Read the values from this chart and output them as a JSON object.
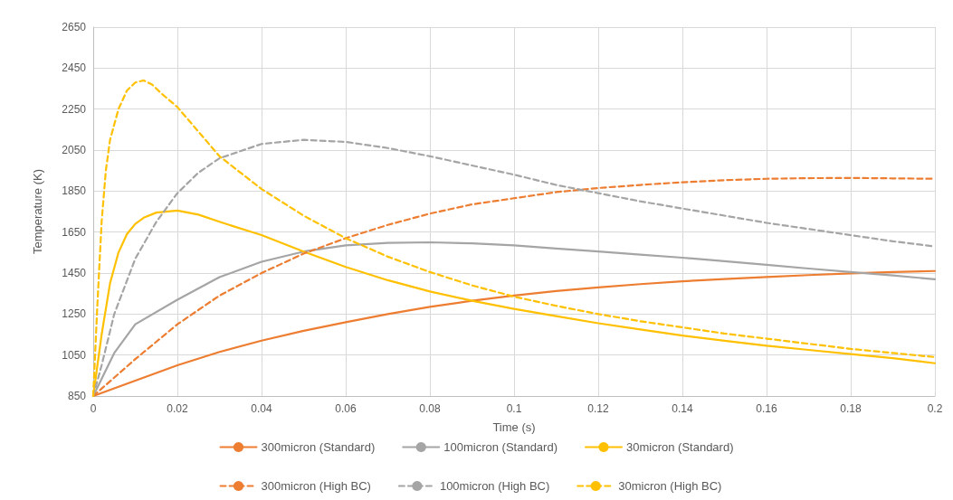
{
  "chart_data": {
    "type": "line",
    "xlabel": "Time (s)",
    "ylabel": "Temperature (K)",
    "xlim": [
      0,
      0.2
    ],
    "xticks": [
      0,
      0.02,
      0.04,
      0.06,
      0.08,
      0.1,
      0.12,
      0.14,
      0.16,
      0.18,
      0.2
    ],
    "ylim": [
      850,
      2650
    ],
    "yticks": [
      850,
      1050,
      1250,
      1450,
      1650,
      1850,
      2050,
      2250,
      2450,
      2650
    ],
    "grid": true,
    "legend": "bottom",
    "marker": "none",
    "series": [
      {
        "name": "300micron (Standard)",
        "color": "#ed7d31",
        "line_style": "solid",
        "x": [
          0,
          0.01,
          0.02,
          0.03,
          0.04,
          0.05,
          0.06,
          0.07,
          0.08,
          0.09,
          0.1,
          0.11,
          0.12,
          0.13,
          0.14,
          0.15,
          0.16,
          0.17,
          0.18,
          0.19,
          0.2
        ],
        "values": [
          850,
          925,
          1000,
          1065,
          1120,
          1168,
          1210,
          1250,
          1285,
          1315,
          1340,
          1362,
          1380,
          1396,
          1410,
          1421,
          1431,
          1440,
          1448,
          1455,
          1460
        ]
      },
      {
        "name": "100micron (Standard)",
        "color": "#a5a5a5",
        "line_style": "solid",
        "x": [
          0,
          0.005,
          0.01,
          0.02,
          0.03,
          0.04,
          0.05,
          0.06,
          0.07,
          0.08,
          0.09,
          0.1,
          0.11,
          0.12,
          0.13,
          0.14,
          0.15,
          0.16,
          0.17,
          0.18,
          0.19,
          0.2
        ],
        "values": [
          850,
          1060,
          1200,
          1320,
          1430,
          1505,
          1555,
          1585,
          1597,
          1600,
          1595,
          1585,
          1570,
          1555,
          1540,
          1525,
          1508,
          1490,
          1472,
          1455,
          1438,
          1420
        ]
      },
      {
        "name": "30micron (Standard)",
        "color": "#ffc000",
        "line_style": "solid",
        "x": [
          0,
          0.002,
          0.004,
          0.006,
          0.008,
          0.01,
          0.012,
          0.015,
          0.02,
          0.025,
          0.03,
          0.04,
          0.05,
          0.06,
          0.07,
          0.08,
          0.09,
          0.1,
          0.11,
          0.12,
          0.13,
          0.14,
          0.15,
          0.16,
          0.17,
          0.18,
          0.19,
          0.2
        ],
        "values": [
          850,
          1150,
          1400,
          1550,
          1640,
          1690,
          1720,
          1745,
          1755,
          1735,
          1700,
          1635,
          1555,
          1480,
          1415,
          1360,
          1315,
          1275,
          1240,
          1205,
          1175,
          1145,
          1120,
          1095,
          1075,
          1055,
          1035,
          1010
        ]
      },
      {
        "name": "300micron (High BC)",
        "color": "#ed7d31",
        "line_style": "dashed",
        "x": [
          0,
          0.01,
          0.02,
          0.03,
          0.04,
          0.05,
          0.06,
          0.07,
          0.08,
          0.09,
          0.1,
          0.11,
          0.12,
          0.13,
          0.14,
          0.15,
          0.16,
          0.17,
          0.18,
          0.19,
          0.2
        ],
        "values": [
          850,
          1030,
          1200,
          1340,
          1450,
          1545,
          1620,
          1685,
          1740,
          1785,
          1815,
          1845,
          1865,
          1880,
          1893,
          1903,
          1910,
          1913,
          1914,
          1912,
          1910
        ]
      },
      {
        "name": "100micron (High BC)",
        "color": "#a5a5a5",
        "line_style": "dashed",
        "x": [
          0,
          0.002,
          0.005,
          0.01,
          0.015,
          0.02,
          0.025,
          0.03,
          0.04,
          0.05,
          0.06,
          0.07,
          0.08,
          0.09,
          0.1,
          0.11,
          0.12,
          0.13,
          0.14,
          0.15,
          0.16,
          0.17,
          0.18,
          0.19,
          0.2
        ],
        "values": [
          850,
          1000,
          1250,
          1520,
          1700,
          1840,
          1940,
          2010,
          2080,
          2100,
          2090,
          2060,
          2020,
          1975,
          1930,
          1880,
          1840,
          1800,
          1765,
          1730,
          1695,
          1665,
          1635,
          1605,
          1580
        ]
      },
      {
        "name": "30micron (High BC)",
        "color": "#ffc000",
        "line_style": "dashed",
        "x": [
          0,
          0.001,
          0.002,
          0.003,
          0.004,
          0.006,
          0.008,
          0.01,
          0.012,
          0.014,
          0.016,
          0.02,
          0.025,
          0.03,
          0.04,
          0.05,
          0.06,
          0.07,
          0.08,
          0.09,
          0.1,
          0.11,
          0.12,
          0.13,
          0.14,
          0.15,
          0.16,
          0.17,
          0.18,
          0.19,
          0.2
        ],
        "values": [
          850,
          1300,
          1700,
          1950,
          2100,
          2250,
          2340,
          2380,
          2390,
          2370,
          2330,
          2260,
          2140,
          2020,
          1860,
          1730,
          1620,
          1530,
          1455,
          1390,
          1335,
          1290,
          1250,
          1215,
          1185,
          1155,
          1130,
          1105,
          1080,
          1060,
          1040
        ]
      }
    ]
  }
}
